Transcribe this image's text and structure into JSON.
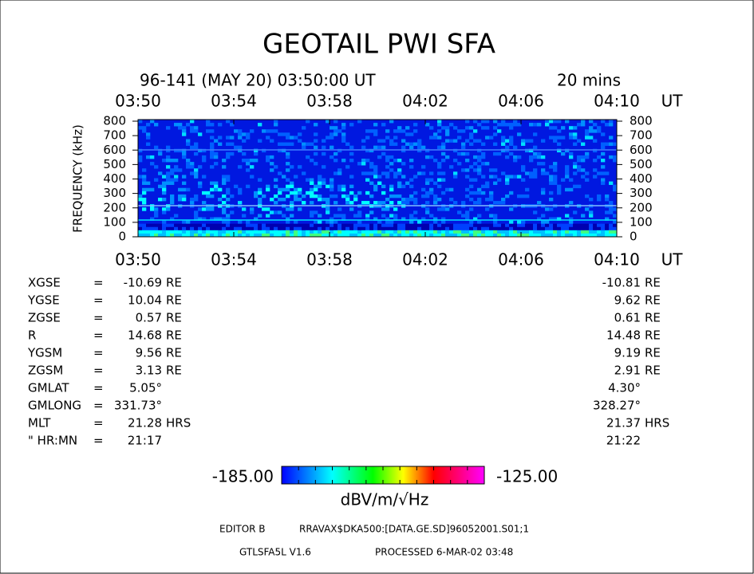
{
  "title": "GEOTAIL PWI SFA",
  "header": {
    "date": "96-141 (MAY 20) 03:50:00 UT",
    "duration": "20 mins"
  },
  "time_axis": {
    "ticks": [
      "03:50",
      "03:54",
      "03:58",
      "04:02",
      "04:06",
      "04:10"
    ],
    "unit": "UT"
  },
  "freq_axis": {
    "label": "FREQUENCY (kHz)",
    "ticks": [
      "0",
      "100",
      "200",
      "300",
      "400",
      "500",
      "600",
      "700",
      "800"
    ]
  },
  "orbit": {
    "rows": [
      {
        "name": "XGSE",
        "eq": "=",
        "start": "-10.69",
        "start_unit": "RE",
        "end": "-10.81",
        "end_unit": "RE"
      },
      {
        "name": "YGSE",
        "eq": "=",
        "start": "10.04",
        "start_unit": "RE",
        "end": "9.62",
        "end_unit": "RE"
      },
      {
        "name": "ZGSE",
        "eq": "=",
        "start": "0.57",
        "start_unit": "RE",
        "end": "0.61",
        "end_unit": "RE"
      },
      {
        "name": "R",
        "eq": "=",
        "start": "14.68",
        "start_unit": "RE",
        "end": "14.48",
        "end_unit": "RE"
      },
      {
        "name": "YGSM",
        "eq": "=",
        "start": "9.56",
        "start_unit": "RE",
        "end": "9.19",
        "end_unit": "RE"
      },
      {
        "name": "ZGSM",
        "eq": "=",
        "start": "3.13",
        "start_unit": "RE",
        "end": "2.91",
        "end_unit": "RE"
      },
      {
        "name": "GMLAT",
        "eq": "=",
        "start": "5.05°",
        "start_unit": null,
        "end": "4.30°",
        "end_unit": null
      },
      {
        "name": "GMLONG",
        "eq": "=",
        "start": "331.73°",
        "start_unit": null,
        "end": "328.27°",
        "end_unit": null
      },
      {
        "name": "MLT",
        "eq": "=",
        "start": "21.28",
        "start_unit": "HRS",
        "end": "21.37",
        "end_unit": "HRS"
      },
      {
        "name": "\" HR:MN",
        "eq": "=",
        "start": "21:17",
        "start_unit": null,
        "end": "21:22",
        "end_unit": null
      }
    ]
  },
  "colorbar": {
    "min": "-185.00",
    "max": "-125.00",
    "unit": "dBV/m/√Hz"
  },
  "footer": {
    "editor": "EDITOR B",
    "file": "RRAVAX$DKA500:[DATA.GE.SD]96052001.S01;1",
    "program": "GTLSFA5L V1.6",
    "processed": "PROCESSED  6-MAR-02  03:48"
  }
}
